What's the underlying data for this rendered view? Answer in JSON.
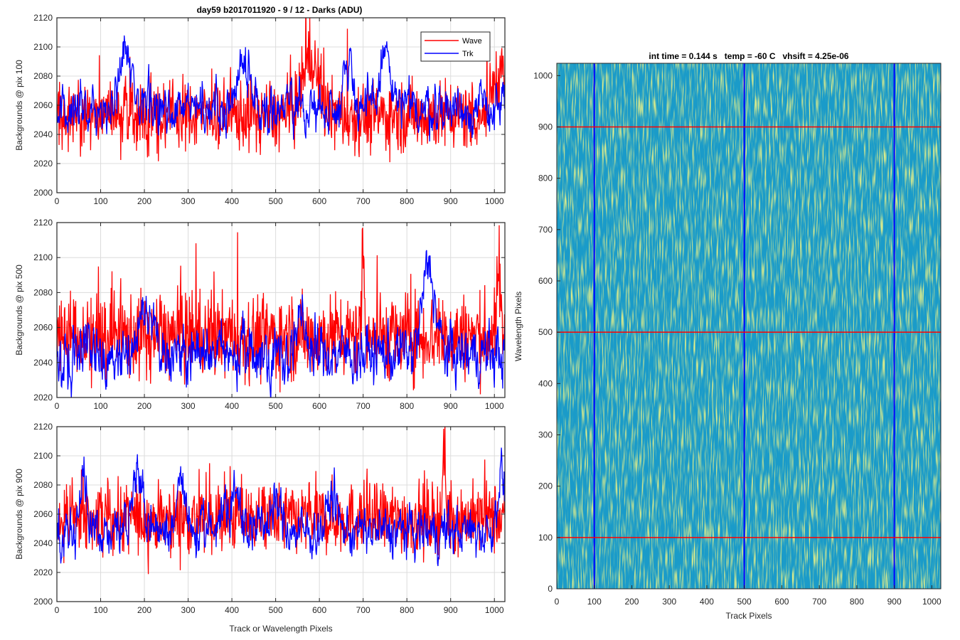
{
  "figure": {
    "title": "day59 b2017011920 - 9 / 12 - Darks (ADU)",
    "right_title": "int time = 0.144 s   temp = -60 C   vhsift = 4.25e-06"
  },
  "colors": {
    "wave": "#ff0000",
    "trk": "#0000ff",
    "image_base": "#1a9bc9"
  },
  "chart_data": [
    {
      "type": "line",
      "title": "day59 b2017011920 - 9 / 12 - Darks (ADU)",
      "xlabel": "",
      "ylabel": "Backgrounds @ pix 100",
      "xlim": [
        0,
        1024
      ],
      "ylim": [
        2000,
        2120
      ],
      "xticks": [
        0,
        100,
        200,
        300,
        400,
        500,
        600,
        700,
        800,
        900,
        1000
      ],
      "yticks": [
        2000,
        2020,
        2040,
        2060,
        2080,
        2100,
        2120
      ],
      "grid": true,
      "legend": {
        "position": "top-right",
        "entries": [
          "Wave",
          "Trk"
        ]
      },
      "series": [
        {
          "name": "Wave",
          "color": "#ff0000",
          "mean": 2053,
          "noise": 12,
          "features": [
            [
              580,
              25,
              40
            ],
            [
              1010,
              20,
              30
            ]
          ]
        },
        {
          "name": "Trk",
          "color": "#0000ff",
          "mean": 2058,
          "noise": 7,
          "features": [
            [
              155,
              15,
              42
            ],
            [
              425,
              22,
              32
            ],
            [
              665,
              16,
              33
            ],
            [
              750,
              15,
              40
            ]
          ]
        }
      ]
    },
    {
      "type": "line",
      "title": "",
      "xlabel": "",
      "ylabel": "Backgrounds @ pix 500",
      "xlim": [
        0,
        1024
      ],
      "ylim": [
        2020,
        2120
      ],
      "xticks": [
        0,
        100,
        200,
        300,
        400,
        500,
        600,
        700,
        800,
        900,
        1000
      ],
      "yticks": [
        2020,
        2040,
        2060,
        2080,
        2100,
        2120
      ],
      "grid": true,
      "series": [
        {
          "name": "Wave",
          "color": "#ff0000",
          "mean": 2055,
          "noise": 12,
          "features": [
            [
              700,
              5,
              45
            ],
            [
              1010,
              5,
              40
            ]
          ]
        },
        {
          "name": "Trk",
          "color": "#0000ff",
          "mean": 2045,
          "noise": 7,
          "features": [
            [
              200,
              25,
              22
            ],
            [
              850,
              20,
              50
            ],
            [
              560,
              20,
              15
            ]
          ]
        }
      ]
    },
    {
      "type": "line",
      "title": "",
      "xlabel": "Track or Wavelength Pixels",
      "ylabel": "Backgrounds @ pix 900",
      "xlim": [
        0,
        1024
      ],
      "ylim": [
        2000,
        2120
      ],
      "xticks": [
        0,
        100,
        200,
        300,
        400,
        500,
        600,
        700,
        800,
        900,
        1000
      ],
      "yticks": [
        2000,
        2020,
        2040,
        2060,
        2080,
        2100,
        2120
      ],
      "grid": true,
      "series": [
        {
          "name": "Wave",
          "color": "#ff0000",
          "mean": 2057,
          "noise": 12,
          "features": [
            [
              885,
              5,
              45
            ]
          ]
        },
        {
          "name": "Trk",
          "color": "#0000ff",
          "mean": 2048,
          "noise": 7,
          "features": [
            [
              60,
              12,
              35
            ],
            [
              185,
              18,
              38
            ],
            [
              285,
              15,
              30
            ],
            [
              400,
              30,
              25
            ],
            [
              500,
              20,
              18
            ],
            [
              630,
              15,
              25
            ],
            [
              1015,
              12,
              40
            ]
          ]
        }
      ]
    },
    {
      "type": "heatmap",
      "title": "int time = 0.144 s   temp = -60 C   vhsift = 4.25e-06",
      "xlabel": "Track Pixels",
      "ylabel": "Wavelength Pixels",
      "xlim": [
        0,
        1024
      ],
      "ylim": [
        0,
        1024
      ],
      "xticks": [
        0,
        100,
        200,
        300,
        400,
        500,
        600,
        700,
        800,
        900,
        1000
      ],
      "yticks": [
        0,
        100,
        200,
        300,
        400,
        500,
        600,
        700,
        800,
        900,
        1000
      ],
      "vertical_markers": [
        100,
        500,
        900
      ],
      "horizontal_markers": [
        100,
        500,
        900
      ],
      "vertical_marker_color": "#0000ff",
      "horizontal_marker_color": "#ff0000"
    }
  ]
}
